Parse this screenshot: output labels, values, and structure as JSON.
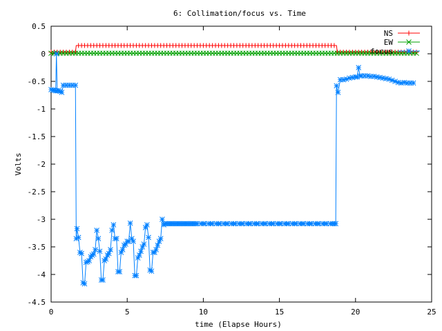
{
  "chart_data": {
    "type": "line",
    "title": "6: Collimation/focus vs. Time",
    "xlabel": "time (Elapse Hours)",
    "ylabel": "Volts",
    "xlim": [
      0,
      25
    ],
    "ylim": [
      -4.5,
      0.5
    ],
    "x_ticks": [
      0,
      5,
      10,
      15,
      20,
      25
    ],
    "y_ticks": [
      0.5,
      0,
      -0.5,
      -1,
      -1.5,
      -2,
      -2.5,
      -3,
      -3.5,
      -4,
      -4.5
    ],
    "grid": false,
    "legend_position": "top-right",
    "series": [
      {
        "name": "NS",
        "color": "#ff0000",
        "marker": "plus",
        "x": [
          0,
          1.6,
          1.65,
          18.75,
          18.8,
          24
        ],
        "y": [
          0.03,
          0.03,
          0.15,
          0.15,
          0.03,
          0.03
        ]
      },
      {
        "name": "EW",
        "color": "#00a000",
        "marker": "cross",
        "x": [
          0,
          24
        ],
        "y": [
          0.01,
          0.01
        ]
      },
      {
        "name": "focus",
        "color": "#0080ff",
        "marker": "star",
        "x": [
          0,
          0.1,
          0.2,
          0.3,
          0.35,
          0.4,
          0.5,
          0.6,
          0.7,
          0.8,
          1.0,
          1.2,
          1.4,
          1.6,
          1.65,
          1.7,
          1.8,
          1.9,
          2.0,
          2.1,
          2.2,
          2.3,
          2.4,
          2.5,
          2.6,
          2.7,
          2.8,
          2.9,
          3.0,
          3.1,
          3.2,
          3.3,
          3.4,
          3.5,
          3.6,
          3.7,
          3.8,
          3.9,
          4.0,
          4.1,
          4.2,
          4.3,
          4.4,
          4.5,
          4.6,
          4.7,
          4.8,
          4.9,
          5.0,
          5.1,
          5.2,
          5.3,
          5.4,
          5.5,
          5.6,
          5.7,
          5.8,
          5.9,
          6.0,
          6.1,
          6.2,
          6.3,
          6.4,
          6.5,
          6.6,
          6.7,
          6.8,
          6.9,
          7.0,
          7.1,
          7.2,
          7.3,
          7.4,
          7.5,
          7.6,
          7.7,
          7.8,
          7.9,
          8.0,
          8.1,
          8.2,
          8.3,
          8.4,
          8.5,
          8.6,
          8.7,
          8.8,
          8.9,
          9.0,
          9.1,
          9.2,
          9.3,
          9.4,
          9.5,
          10,
          10.5,
          11,
          11.5,
          12,
          12.5,
          13,
          13.5,
          14,
          14.5,
          15,
          15.5,
          16,
          16.5,
          17,
          17.5,
          18,
          18.5,
          18.7,
          18.75,
          18.85,
          19.0,
          19.2,
          19.4,
          19.6,
          19.8,
          20.0,
          20.1,
          20.2,
          20.3,
          20.4,
          20.6,
          20.8,
          21.0,
          21.2,
          21.4,
          21.6,
          21.8,
          22.0,
          22.2,
          22.4,
          22.6,
          22.8,
          23.0,
          23.2,
          23.4,
          23.6,
          23.8
        ],
        "y": [
          -0.65,
          -0.66,
          -0.66,
          -0.67,
          0.0,
          -0.67,
          -0.67,
          -0.68,
          -0.7,
          -0.57,
          -0.57,
          -0.57,
          -0.57,
          -0.57,
          -3.35,
          -3.17,
          -3.33,
          -3.6,
          -3.62,
          -4.15,
          -4.17,
          -3.78,
          -3.77,
          -3.75,
          -3.68,
          -3.65,
          -3.63,
          -3.55,
          -3.2,
          -3.35,
          -3.58,
          -4.1,
          -4.1,
          -3.75,
          -3.72,
          -3.65,
          -3.62,
          -3.55,
          -3.2,
          -3.1,
          -3.35,
          -3.35,
          -3.95,
          -3.95,
          -3.6,
          -3.55,
          -3.47,
          -3.45,
          -3.4,
          -3.4,
          -3.07,
          -3.35,
          -3.4,
          -4.02,
          -4.02,
          -3.7,
          -3.65,
          -3.58,
          -3.5,
          -3.45,
          -3.15,
          -3.1,
          -3.33,
          -3.92,
          -3.94,
          -3.6,
          -3.6,
          -3.55,
          -3.47,
          -3.4,
          -3.35,
          -3.0,
          -3.1,
          -3.08,
          -3.08,
          -3.08,
          -3.08,
          -3.08,
          -3.08,
          -3.08,
          -3.08,
          -3.08,
          -3.08,
          -3.08,
          -3.08,
          -3.08,
          -3.08,
          -3.08,
          -3.08,
          -3.08,
          -3.08,
          -3.08,
          -3.08,
          -3.08,
          -3.08,
          -3.08,
          -3.08,
          -3.08,
          -3.08,
          -3.08,
          -3.08,
          -3.08,
          -3.08,
          -3.08,
          -3.08,
          -3.08,
          -3.08,
          -3.08,
          -3.08,
          -3.08,
          -3.08,
          -3.08,
          -3.08,
          -0.58,
          -0.7,
          -0.47,
          -0.47,
          -0.46,
          -0.44,
          -0.43,
          -0.42,
          -0.42,
          -0.25,
          -0.4,
          -0.4,
          -0.4,
          -0.4,
          -0.41,
          -0.41,
          -0.42,
          -0.43,
          -0.44,
          -0.45,
          -0.46,
          -0.48,
          -0.5,
          -0.52,
          -0.53,
          -0.52,
          -0.53,
          -0.53,
          -0.53
        ]
      }
    ]
  }
}
